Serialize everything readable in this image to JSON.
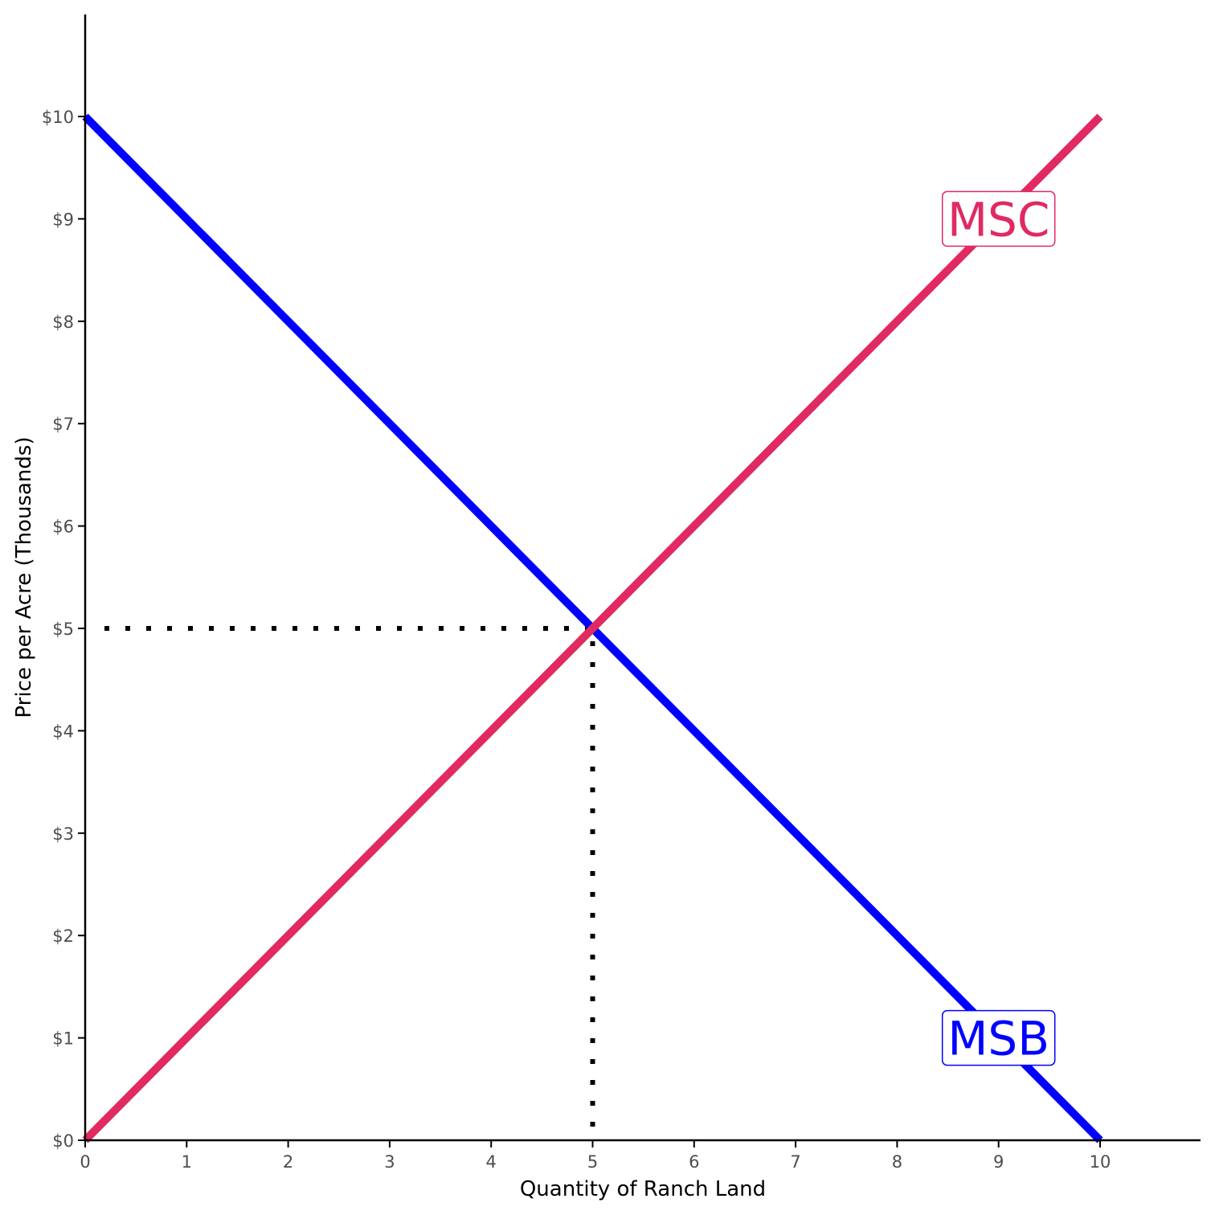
{
  "chart_data": {
    "type": "line",
    "title": "",
    "xlabel": "Quantity of Ranch Land",
    "ylabel": "Price per Acre (Thousands)",
    "xlim": [
      0,
      11
    ],
    "ylim": [
      0,
      11
    ],
    "x_ticks": [
      0,
      1,
      2,
      3,
      4,
      5,
      6,
      7,
      8,
      9,
      10
    ],
    "x_tick_labels": [
      "0",
      "1",
      "2",
      "3",
      "4",
      "5",
      "6",
      "7",
      "8",
      "9",
      "10"
    ],
    "y_ticks": [
      0,
      1,
      2,
      3,
      4,
      5,
      6,
      7,
      8,
      9,
      10
    ],
    "y_tick_labels": [
      "$0",
      "$1",
      "$2",
      "$3",
      "$4",
      "$5",
      "$6",
      "$7",
      "$8",
      "$9",
      "$10"
    ],
    "grid": false,
    "legend": "none",
    "series": [
      {
        "name": "MSB",
        "color": "#0000ff",
        "x": [
          0,
          10
        ],
        "y": [
          10,
          0
        ],
        "label_at": [
          9,
          1
        ]
      },
      {
        "name": "MSC",
        "color": "#e02a61",
        "x": [
          0,
          10
        ],
        "y": [
          0,
          10
        ],
        "label_at": [
          9,
          9
        ]
      }
    ],
    "reference_lines": {
      "style": "dotted",
      "color": "#000000",
      "point": [
        5,
        5
      ]
    }
  }
}
